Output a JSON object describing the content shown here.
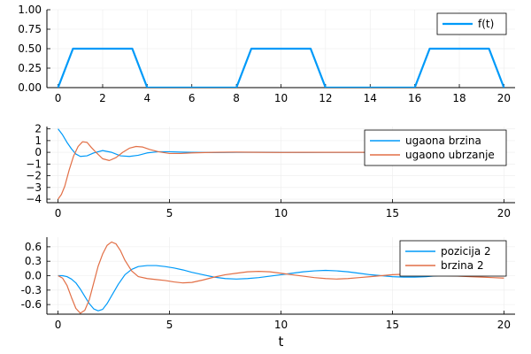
{
  "colors": {
    "series1": "#009af9",
    "series2": "#e26f46"
  },
  "chart_data": [
    {
      "type": "line",
      "xlim": [
        -0.5,
        20.5
      ],
      "ylim": [
        0,
        1
      ],
      "xticks": [
        0,
        2,
        4,
        6,
        8,
        10,
        12,
        14,
        16,
        18,
        20
      ],
      "xtick_labels": [
        "0",
        "2",
        "4",
        "6",
        "8",
        "10",
        "12",
        "14",
        "16",
        "18",
        "20"
      ],
      "yticks": [
        0,
        0.25,
        0.5,
        0.75,
        1.0
      ],
      "ytick_labels": [
        "0.00",
        "0.25",
        "0.50",
        "0.75",
        "1.00"
      ],
      "grid": true,
      "legend": "top-right",
      "series": [
        {
          "name": "f(t)",
          "x": [
            0,
            0.67,
            3.33,
            4,
            8,
            8.67,
            11.33,
            12,
            16,
            16.67,
            19.33,
            20
          ],
          "y": [
            0,
            0.5,
            0.5,
            0,
            0,
            0.5,
            0.5,
            0,
            0,
            0.5,
            0.5,
            0
          ]
        }
      ]
    },
    {
      "type": "line",
      "xlim": [
        -0.5,
        20.5
      ],
      "ylim": [
        -4.3,
        2.2
      ],
      "xticks": [
        0,
        5,
        10,
        15,
        20
      ],
      "xtick_labels": [
        "0",
        "5",
        "10",
        "15",
        "20"
      ],
      "yticks": [
        2,
        1,
        0,
        -1,
        -2,
        -3,
        -4
      ],
      "ytick_labels": [
        "2",
        "1",
        "0",
        "−1",
        "−2",
        "−3",
        "−4"
      ],
      "grid": true,
      "legend": "top-right",
      "series": [
        {
          "name": "ugaona brzina",
          "x": [
            0,
            0.2,
            0.4,
            0.6,
            0.8,
            1.0,
            1.3,
            1.6,
            2.0,
            2.4,
            2.8,
            3.2,
            3.6,
            4.0,
            4.5,
            5.0,
            5.5,
            6.0,
            7.0,
            8.0,
            9.0,
            10.0,
            11.0,
            12.0,
            13.0,
            14.0,
            15.0,
            16.0,
            17.0,
            18.0,
            19.0,
            20.0
          ],
          "y": [
            2.0,
            1.5,
            0.85,
            0.3,
            -0.15,
            -0.35,
            -0.3,
            -0.05,
            0.15,
            0.0,
            -0.3,
            -0.35,
            -0.25,
            -0.05,
            0.05,
            0.05,
            0.02,
            0.0,
            -0.02,
            0.0,
            0.01,
            0.0,
            -0.01,
            0.0,
            0.0,
            0.0,
            0.0,
            0.0,
            0.0,
            0.0,
            0.0,
            0.0
          ]
        },
        {
          "name": "ugaono ubrzanje",
          "x": [
            0,
            0.15,
            0.3,
            0.5,
            0.7,
            0.9,
            1.1,
            1.3,
            1.5,
            1.7,
            2.0,
            2.3,
            2.6,
            2.9,
            3.2,
            3.5,
            3.8,
            4.1,
            4.5,
            5.0,
            5.5,
            6.0,
            7.0,
            8.0,
            9.0,
            10.0,
            11.0,
            12.0,
            13.0,
            14.0,
            15.0,
            16.0,
            17.0,
            18.0,
            19.0,
            20.0
          ],
          "y": [
            -4.0,
            -3.6,
            -2.9,
            -1.5,
            -0.3,
            0.5,
            0.9,
            0.85,
            0.4,
            0.0,
            -0.55,
            -0.7,
            -0.45,
            0.0,
            0.35,
            0.5,
            0.45,
            0.25,
            0.05,
            -0.1,
            -0.1,
            -0.05,
            0.0,
            0.02,
            0.0,
            -0.01,
            0.0,
            0.0,
            0.0,
            0.0,
            0.0,
            0.0,
            0.0,
            0.0,
            0.0,
            0.0
          ]
        }
      ]
    },
    {
      "type": "line",
      "xlim": [
        -0.5,
        20.5
      ],
      "ylim": [
        -0.8,
        0.8
      ],
      "xticks": [
        0,
        5,
        10,
        15,
        20
      ],
      "xtick_labels": [
        "0",
        "5",
        "10",
        "15",
        "20"
      ],
      "yticks": [
        0.6,
        0.3,
        0.0,
        -0.3,
        -0.6
      ],
      "ytick_labels": [
        "0.6",
        "0.3",
        "0.0",
        "-0.3",
        "-0.6"
      ],
      "xlabel": "t",
      "grid": true,
      "legend": "top-right",
      "series": [
        {
          "name": "pozicija 2",
          "x": [
            0,
            0.2,
            0.4,
            0.6,
            0.8,
            1.0,
            1.2,
            1.4,
            1.6,
            1.8,
            2.0,
            2.2,
            2.4,
            2.7,
            3.0,
            3.3,
            3.6,
            4.0,
            4.4,
            4.8,
            5.2,
            5.6,
            6.0,
            6.5,
            7.0,
            7.5,
            8.0,
            8.5,
            9.0,
            9.5,
            10.0,
            10.5,
            11.0,
            11.5,
            12.0,
            12.5,
            13.0,
            13.5,
            14.0,
            14.5,
            15.0,
            15.5,
            16.0,
            16.5,
            17.0,
            17.5,
            18.0,
            18.5,
            19.0,
            19.5,
            20.0
          ],
          "y": [
            0,
            0.0,
            -0.02,
            -0.07,
            -0.15,
            -0.28,
            -0.43,
            -0.58,
            -0.69,
            -0.73,
            -0.7,
            -0.58,
            -0.42,
            -0.18,
            0.02,
            0.13,
            0.19,
            0.21,
            0.21,
            0.19,
            0.16,
            0.12,
            0.07,
            0.02,
            -0.03,
            -0.06,
            -0.07,
            -0.06,
            -0.04,
            -0.01,
            0.02,
            0.05,
            0.08,
            0.1,
            0.11,
            0.1,
            0.08,
            0.05,
            0.02,
            0.0,
            -0.02,
            -0.03,
            -0.03,
            -0.02,
            0.0,
            0.02,
            0.04,
            0.05,
            0.06,
            0.07,
            0.09
          ]
        },
        {
          "name": "brzina 2",
          "x": [
            0,
            0.2,
            0.4,
            0.6,
            0.8,
            1.0,
            1.2,
            1.4,
            1.6,
            1.8,
            2.0,
            2.2,
            2.4,
            2.6,
            2.8,
            3.0,
            3.3,
            3.6,
            4.0,
            4.4,
            4.8,
            5.2,
            5.6,
            6.0,
            6.5,
            7.0,
            7.5,
            8.0,
            8.5,
            9.0,
            9.5,
            10.0,
            10.5,
            11.0,
            11.5,
            12.0,
            12.5,
            13.0,
            13.5,
            14.0,
            14.5,
            15.0,
            15.5,
            16.0,
            16.5,
            17.0,
            17.5,
            18.0,
            18.5,
            19.0,
            19.5,
            20.0
          ],
          "y": [
            0,
            -0.05,
            -0.2,
            -0.45,
            -0.68,
            -0.78,
            -0.72,
            -0.5,
            -0.15,
            0.2,
            0.45,
            0.63,
            0.7,
            0.66,
            0.52,
            0.32,
            0.1,
            -0.02,
            -0.06,
            -0.08,
            -0.1,
            -0.13,
            -0.15,
            -0.14,
            -0.09,
            -0.03,
            0.02,
            0.05,
            0.08,
            0.09,
            0.08,
            0.05,
            0.02,
            -0.01,
            -0.04,
            -0.06,
            -0.07,
            -0.06,
            -0.04,
            -0.02,
            0.0,
            0.02,
            0.03,
            0.03,
            0.02,
            0.01,
            0.0,
            -0.01,
            -0.02,
            -0.03,
            -0.04,
            -0.05
          ]
        }
      ]
    }
  ]
}
